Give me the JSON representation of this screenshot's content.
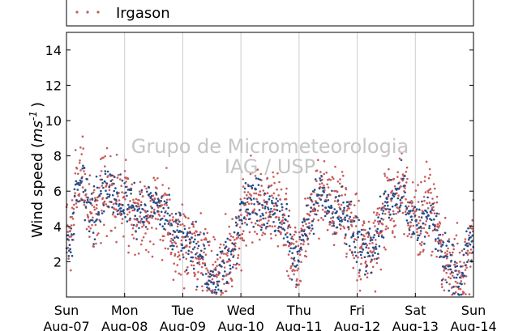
{
  "chart_data": {
    "type": "scatter",
    "title": "",
    "ylabel_main": "Wind speed (",
    "ylabel_unit": "ms",
    "ylabel_exp": "-1",
    "ylabel_close": ")",
    "ylim": [
      0,
      15
    ],
    "yticks": [
      2,
      4,
      6,
      8,
      10,
      12,
      14
    ],
    "xlim": [
      0,
      7
    ],
    "xtick_days": [
      "Sun",
      "Mon",
      "Tue",
      "Wed",
      "Thu",
      "Fri",
      "Sat",
      "Sun"
    ],
    "xtick_dates": [
      "Aug-07",
      "Aug-08",
      "Aug-09",
      "Aug-10",
      "Aug-11",
      "Aug-12",
      "Aug-13",
      "Aug-14"
    ],
    "grid": "vertical",
    "legend_position": "top",
    "watermark": [
      "Grupo de Micrometeorologia",
      "IAG / USP"
    ],
    "series": [
      {
        "name": "Irgason",
        "color": "#c85a5a",
        "profile": [
          [
            0.0,
            3.0
          ],
          [
            0.08,
            3.5
          ],
          [
            0.18,
            6.5
          ],
          [
            0.28,
            7.0
          ],
          [
            0.36,
            5.0
          ],
          [
            0.45,
            4.5
          ],
          [
            0.55,
            5.5
          ],
          [
            0.68,
            6.2
          ],
          [
            0.85,
            5.8
          ],
          [
            1.0,
            5.5
          ],
          [
            1.15,
            5.0
          ],
          [
            1.3,
            4.8
          ],
          [
            1.45,
            4.8
          ],
          [
            1.6,
            5.0
          ],
          [
            1.75,
            4.5
          ],
          [
            1.85,
            3.5
          ],
          [
            2.0,
            3.2
          ],
          [
            2.15,
            3.0
          ],
          [
            2.3,
            2.5
          ],
          [
            2.45,
            1.5
          ],
          [
            2.58,
            1.1
          ],
          [
            2.7,
            1.8
          ],
          [
            2.85,
            2.5
          ],
          [
            2.95,
            3.5
          ],
          [
            3.05,
            4.5
          ],
          [
            3.2,
            5.5
          ],
          [
            3.35,
            5.0
          ],
          [
            3.5,
            5.3
          ],
          [
            3.65,
            4.8
          ],
          [
            3.75,
            4.0
          ],
          [
            3.88,
            2.0
          ],
          [
            3.98,
            2.0
          ],
          [
            4.1,
            3.5
          ],
          [
            4.25,
            5.0
          ],
          [
            4.35,
            6.0
          ],
          [
            4.45,
            5.5
          ],
          [
            4.6,
            4.8
          ],
          [
            4.75,
            5.0
          ],
          [
            4.88,
            4.0
          ],
          [
            5.0,
            3.0
          ],
          [
            5.12,
            2.8
          ],
          [
            5.25,
            2.5
          ],
          [
            5.35,
            3.0
          ],
          [
            5.45,
            4.5
          ],
          [
            5.55,
            5.2
          ],
          [
            5.65,
            5.5
          ],
          [
            5.75,
            6.3
          ],
          [
            5.85,
            5.0
          ],
          [
            5.95,
            4.5
          ],
          [
            6.1,
            4.0
          ],
          [
            6.2,
            5.0
          ],
          [
            6.3,
            4.5
          ],
          [
            6.4,
            3.0
          ],
          [
            6.5,
            2.2
          ],
          [
            6.6,
            1.8
          ],
          [
            6.7,
            1.5
          ],
          [
            6.8,
            1.0
          ],
          [
            6.9,
            2.5
          ],
          [
            7.0,
            3.0
          ]
        ],
        "spread": 1.1,
        "n_points": 1350,
        "seed": 7
      },
      {
        "name": "",
        "color": "#1f4e8c",
        "profile": [
          [
            0.0,
            3.0
          ],
          [
            0.08,
            3.2
          ],
          [
            0.18,
            6.2
          ],
          [
            0.28,
            6.8
          ],
          [
            0.36,
            5.2
          ],
          [
            0.45,
            4.6
          ],
          [
            0.55,
            5.6
          ],
          [
            0.68,
            6.3
          ],
          [
            0.85,
            5.9
          ],
          [
            1.0,
            5.4
          ],
          [
            1.15,
            5.1
          ],
          [
            1.3,
            4.9
          ],
          [
            1.45,
            4.9
          ],
          [
            1.6,
            5.0
          ],
          [
            1.75,
            4.4
          ],
          [
            1.85,
            3.4
          ],
          [
            2.0,
            3.3
          ],
          [
            2.15,
            3.0
          ],
          [
            2.3,
            2.4
          ],
          [
            2.45,
            1.5
          ],
          [
            2.58,
            1.0
          ],
          [
            2.7,
            1.7
          ],
          [
            2.85,
            2.6
          ],
          [
            2.95,
            3.6
          ],
          [
            3.05,
            4.6
          ],
          [
            3.2,
            5.4
          ],
          [
            3.35,
            5.1
          ],
          [
            3.5,
            5.2
          ],
          [
            3.65,
            4.7
          ],
          [
            3.75,
            4.1
          ],
          [
            3.88,
            2.2
          ],
          [
            3.98,
            2.1
          ],
          [
            4.1,
            3.6
          ],
          [
            4.25,
            5.1
          ],
          [
            4.35,
            6.0
          ],
          [
            4.45,
            5.4
          ],
          [
            4.6,
            4.9
          ],
          [
            4.75,
            5.0
          ],
          [
            4.88,
            4.1
          ],
          [
            5.0,
            3.1
          ],
          [
            5.12,
            2.9
          ],
          [
            5.25,
            2.4
          ],
          [
            5.35,
            3.1
          ],
          [
            5.45,
            4.6
          ],
          [
            5.55,
            5.3
          ],
          [
            5.65,
            5.5
          ],
          [
            5.75,
            6.2
          ],
          [
            5.85,
            5.1
          ],
          [
            5.95,
            4.5
          ],
          [
            6.1,
            4.1
          ],
          [
            6.2,
            4.9
          ],
          [
            6.3,
            4.4
          ],
          [
            6.4,
            3.0
          ],
          [
            6.5,
            2.3
          ],
          [
            6.6,
            1.9
          ],
          [
            6.7,
            1.4
          ],
          [
            6.8,
            1.1
          ],
          [
            6.9,
            2.6
          ],
          [
            7.0,
            3.0
          ]
        ],
        "spread": 0.7,
        "n_points": 850,
        "seed": 13
      }
    ]
  }
}
